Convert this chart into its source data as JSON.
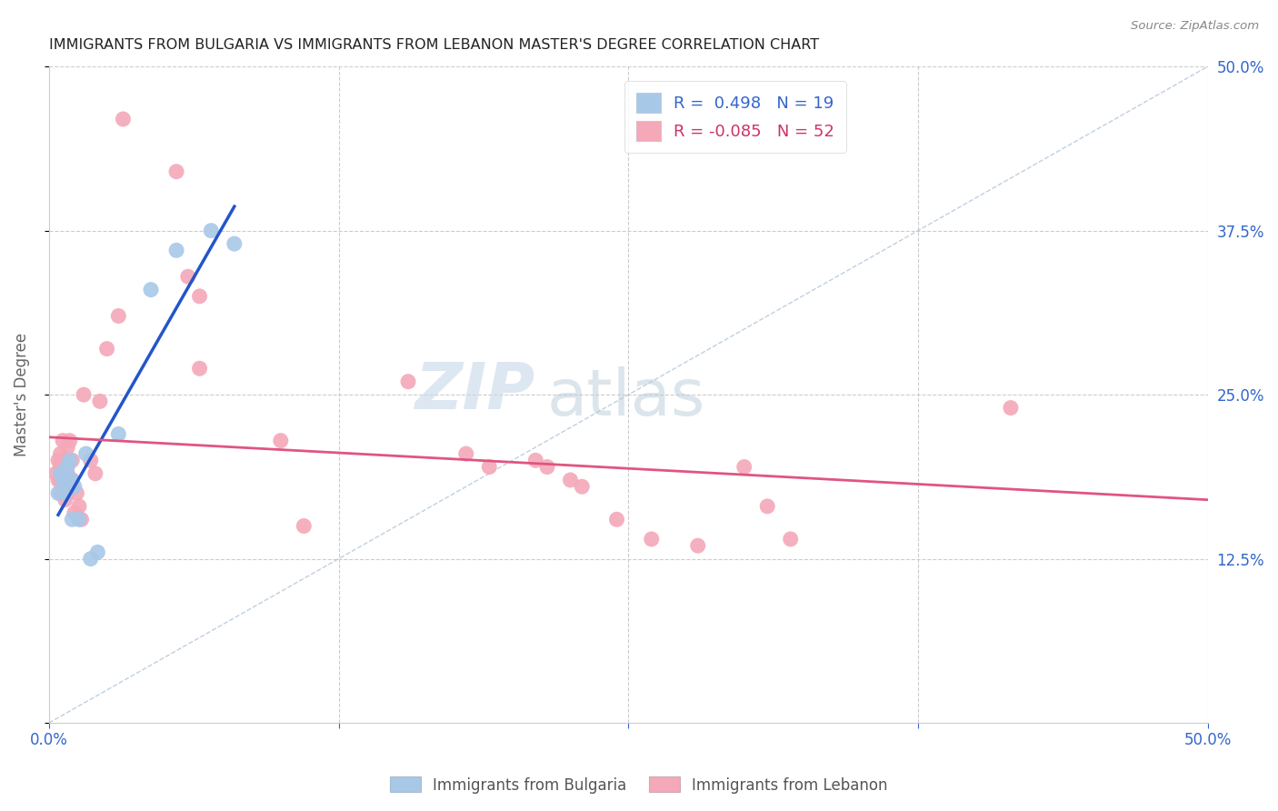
{
  "title": "IMMIGRANTS FROM BULGARIA VS IMMIGRANTS FROM LEBANON MASTER'S DEGREE CORRELATION CHART",
  "source": "Source: ZipAtlas.com",
  "ylabel": "Master's Degree",
  "xlim": [
    0.0,
    0.5
  ],
  "ylim": [
    0.0,
    0.5
  ],
  "grid_color": "#cccccc",
  "background_color": "#ffffff",
  "bulgaria_color": "#a8c8e8",
  "lebanon_color": "#f4a8b8",
  "bulgaria_line_color": "#2255cc",
  "lebanon_line_color": "#e05580",
  "diag_color": "#b0c4d8",
  "bulgaria_R": 0.498,
  "bulgaria_N": 19,
  "lebanon_R": -0.085,
  "lebanon_N": 52,
  "legend_color_blue": "#3366cc",
  "legend_color_pink": "#cc3366",
  "legend_label1": "Immigrants from Bulgaria",
  "legend_label2": "Immigrants from Lebanon",
  "watermark_zip": "ZIP",
  "watermark_atlas": "atlas",
  "watermark_color_zip": "#c5d8ea",
  "watermark_color_atlas": "#b8ccd8",
  "bulgaria_x": [
    0.004,
    0.005,
    0.006,
    0.007,
    0.008,
    0.008,
    0.009,
    0.01,
    0.01,
    0.011,
    0.013,
    0.016,
    0.018,
    0.021,
    0.03,
    0.044,
    0.055,
    0.07,
    0.08
  ],
  "bulgaria_y": [
    0.175,
    0.19,
    0.185,
    0.175,
    0.185,
    0.195,
    0.2,
    0.185,
    0.155,
    0.18,
    0.155,
    0.205,
    0.125,
    0.13,
    0.22,
    0.33,
    0.36,
    0.375,
    0.365
  ],
  "lebanon_x": [
    0.003,
    0.004,
    0.004,
    0.005,
    0.005,
    0.005,
    0.005,
    0.005,
    0.006,
    0.006,
    0.007,
    0.007,
    0.007,
    0.008,
    0.008,
    0.008,
    0.008,
    0.009,
    0.01,
    0.01,
    0.01,
    0.011,
    0.012,
    0.013,
    0.014,
    0.015,
    0.018,
    0.02,
    0.022,
    0.025,
    0.03,
    0.032,
    0.055,
    0.06,
    0.065,
    0.065,
    0.1,
    0.11,
    0.155,
    0.18,
    0.19,
    0.21,
    0.215,
    0.225,
    0.23,
    0.245,
    0.26,
    0.28,
    0.3,
    0.31,
    0.32,
    0.415
  ],
  "lebanon_y": [
    0.19,
    0.185,
    0.2,
    0.175,
    0.185,
    0.195,
    0.2,
    0.205,
    0.185,
    0.215,
    0.17,
    0.175,
    0.185,
    0.175,
    0.18,
    0.19,
    0.21,
    0.215,
    0.18,
    0.185,
    0.2,
    0.16,
    0.175,
    0.165,
    0.155,
    0.25,
    0.2,
    0.19,
    0.245,
    0.285,
    0.31,
    0.46,
    0.42,
    0.34,
    0.325,
    0.27,
    0.215,
    0.15,
    0.26,
    0.205,
    0.195,
    0.2,
    0.195,
    0.185,
    0.18,
    0.155,
    0.14,
    0.135,
    0.195,
    0.165,
    0.14,
    0.24
  ]
}
